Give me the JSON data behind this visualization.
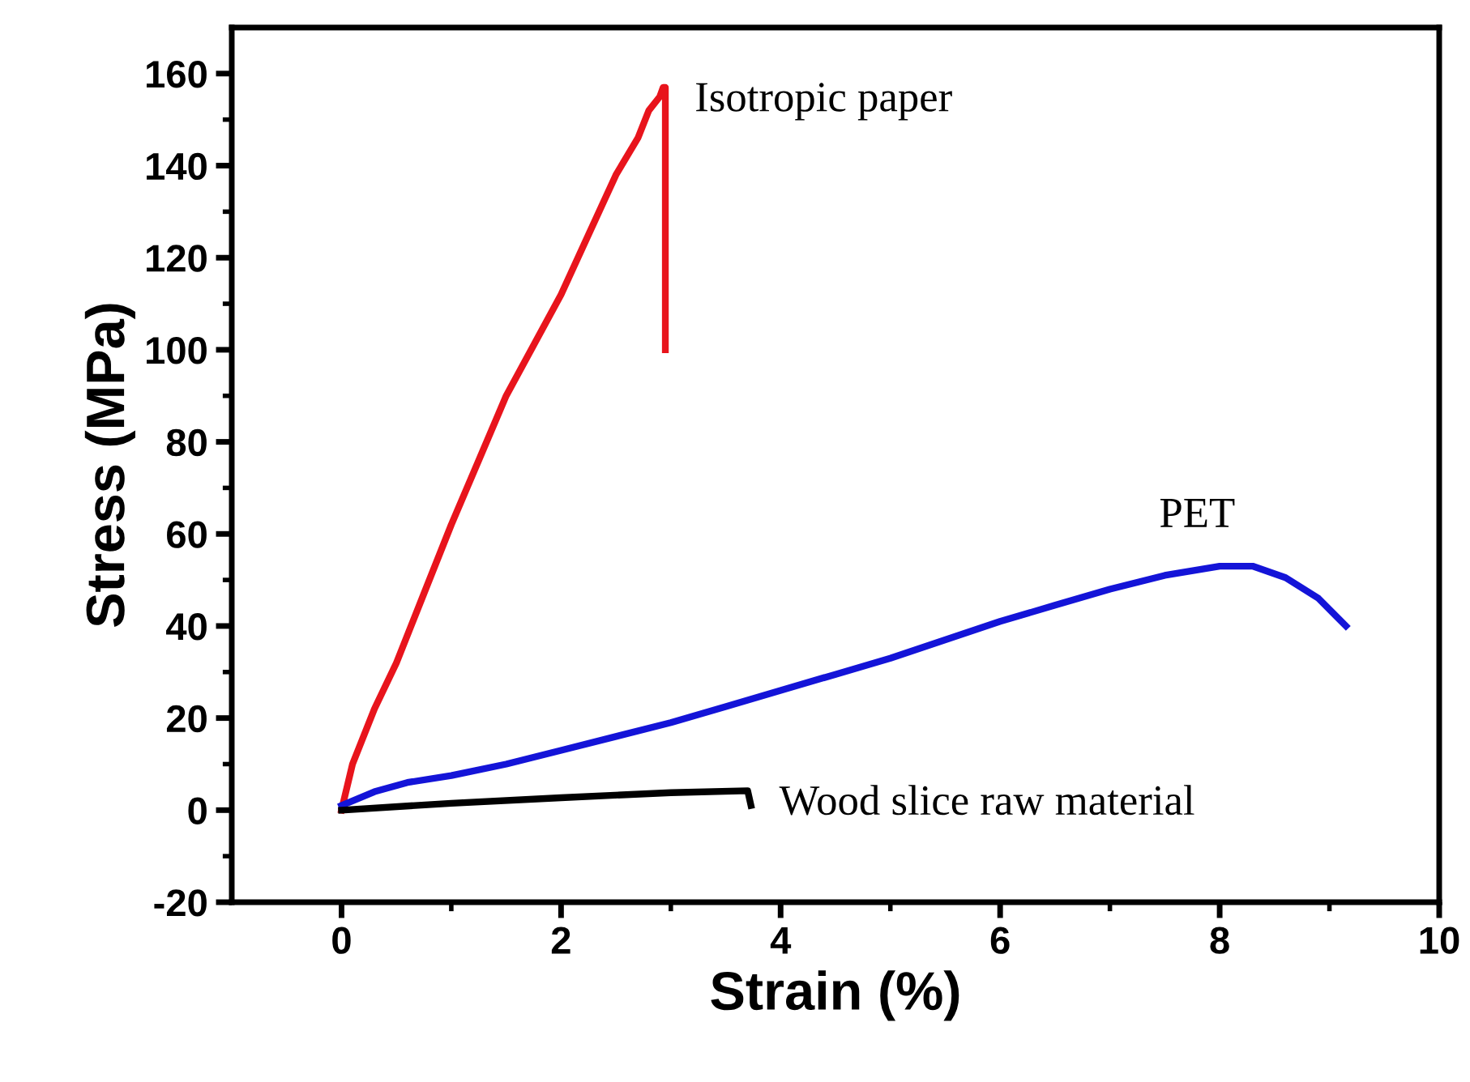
{
  "chart_data": {
    "type": "line",
    "xlabel": "Strain (%)",
    "ylabel": "Stress (MPa)",
    "xlim": [
      -1,
      10
    ],
    "xticks": [
      0,
      2,
      4,
      6,
      8,
      10
    ],
    "ylim": [
      -20,
      170
    ],
    "yticks": [
      -20,
      0,
      20,
      40,
      60,
      80,
      100,
      120,
      140,
      160
    ],
    "grid": false,
    "marker": "none",
    "line_style": "solid",
    "series": [
      {
        "name": "Isotropic paper",
        "color": "#e8141c",
        "x": [
          0,
          0.1,
          0.3,
          0.5,
          0.75,
          1,
          1.25,
          1.5,
          1.75,
          2,
          2.25,
          2.5,
          2.7,
          2.8,
          2.9,
          2.93,
          2.95,
          2.95
        ],
        "values": [
          0,
          10,
          22,
          32,
          47,
          62,
          76,
          90,
          101,
          112,
          125,
          138,
          146,
          152,
          155,
          157,
          157,
          100
        ]
      },
      {
        "name": "PET",
        "color": "#1414d8",
        "x": [
          0,
          0.3,
          0.6,
          1,
          1.5,
          2,
          2.5,
          3,
          3.5,
          4,
          4.5,
          5,
          5.5,
          6,
          6.5,
          7,
          7.5,
          8,
          8.3,
          8.6,
          8.9,
          9.15
        ],
        "values": [
          1,
          4,
          6,
          7.5,
          10,
          13,
          16,
          19,
          22.5,
          26,
          29.5,
          33,
          37,
          41,
          44.5,
          48,
          51,
          53,
          53,
          50.5,
          46,
          40
        ]
      },
      {
        "name": "Wood slice raw material",
        "color": "#000000",
        "x": [
          0,
          1,
          2,
          3,
          3.7,
          3.73
        ],
        "values": [
          0,
          1.5,
          2.7,
          3.8,
          4.2,
          1
        ]
      }
    ]
  }
}
